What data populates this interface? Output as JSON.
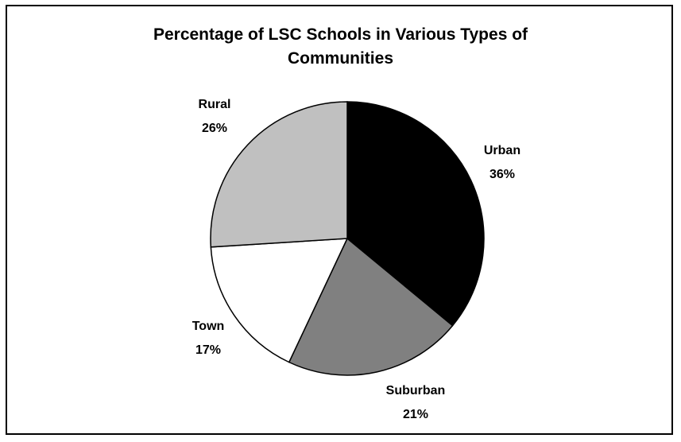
{
  "chart_data": {
    "type": "pie",
    "title_lines": [
      "Percentage of LSC Schools in Various Types of",
      "Communities"
    ],
    "categories": [
      "Urban",
      "Suburban",
      "Town",
      "Rural"
    ],
    "values": [
      36,
      21,
      17,
      26
    ],
    "value_labels": [
      "36%",
      "21%",
      "17%",
      "26%"
    ],
    "colors": [
      "#000000",
      "#808080",
      "#ffffff",
      "#c0c0c0"
    ],
    "slice_outline_color": "#000000",
    "start": "12 o'clock",
    "direction": "clockwise",
    "legend": "none"
  }
}
